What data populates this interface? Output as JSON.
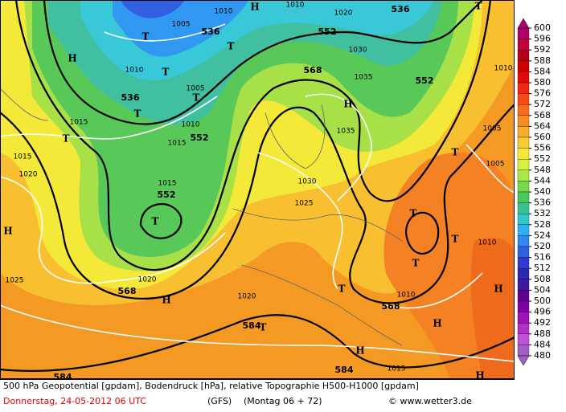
{
  "map": {
    "contour_labels": [
      "536",
      "552",
      "536",
      "552",
      "568",
      "536",
      "552",
      "552",
      "568",
      "568",
      "584",
      "584",
      "584"
    ],
    "isobar_labels": [
      "1010",
      "1010",
      "1020",
      "1005",
      "1010",
      "1005",
      "1010",
      "1015",
      "1015",
      "1015",
      "1020",
      "1015",
      "1025",
      "1030",
      "1035",
      "1030",
      "1035",
      "1025",
      "1020",
      "1020",
      "1010",
      "1005",
      "1005",
      "1010",
      "1015",
      "1010"
    ],
    "pressure_centers": [
      "T",
      "T",
      "H",
      "T",
      "T",
      "T",
      "T",
      "H",
      "H",
      "H",
      "T",
      "T",
      "H",
      "T",
      "T",
      "T",
      "T",
      "T",
      "H",
      "H",
      "H",
      "T",
      "H"
    ]
  },
  "legend": {
    "levels": [
      600,
      596,
      592,
      588,
      584,
      580,
      576,
      572,
      568,
      564,
      560,
      556,
      552,
      548,
      544,
      540,
      536,
      532,
      528,
      524,
      520,
      516,
      512,
      508,
      504,
      500,
      496,
      492,
      488,
      484,
      480
    ],
    "colors": [
      "#b0006a",
      "#c0003a",
      "#b40018",
      "#cc0000",
      "#e40808",
      "#f02810",
      "#f84c14",
      "#f86c1c",
      "#f88c24",
      "#f8ac2c",
      "#f8cc30",
      "#f8e838",
      "#d8f040",
      "#a8e848",
      "#78d848",
      "#48c858",
      "#38c090",
      "#30c8c8",
      "#30b0f0",
      "#3088f0",
      "#3060e0",
      "#3038d0",
      "#2828b0",
      "#4018a0",
      "#600090",
      "#8000a8",
      "#a010b8",
      "#b030c8",
      "#c050d8",
      "#a060c8"
    ]
  },
  "footer": {
    "line1": "500 hPa Geopotential [gpdam], Bodendruck [hPa], relative Topographie H500-H1000 [gpdam]",
    "date": "Donnerstag, 24-05-2012  06 UTC",
    "model": "(GFS)",
    "run": "(Montag 06 + 72)",
    "source": "© www.wetter3.de"
  }
}
